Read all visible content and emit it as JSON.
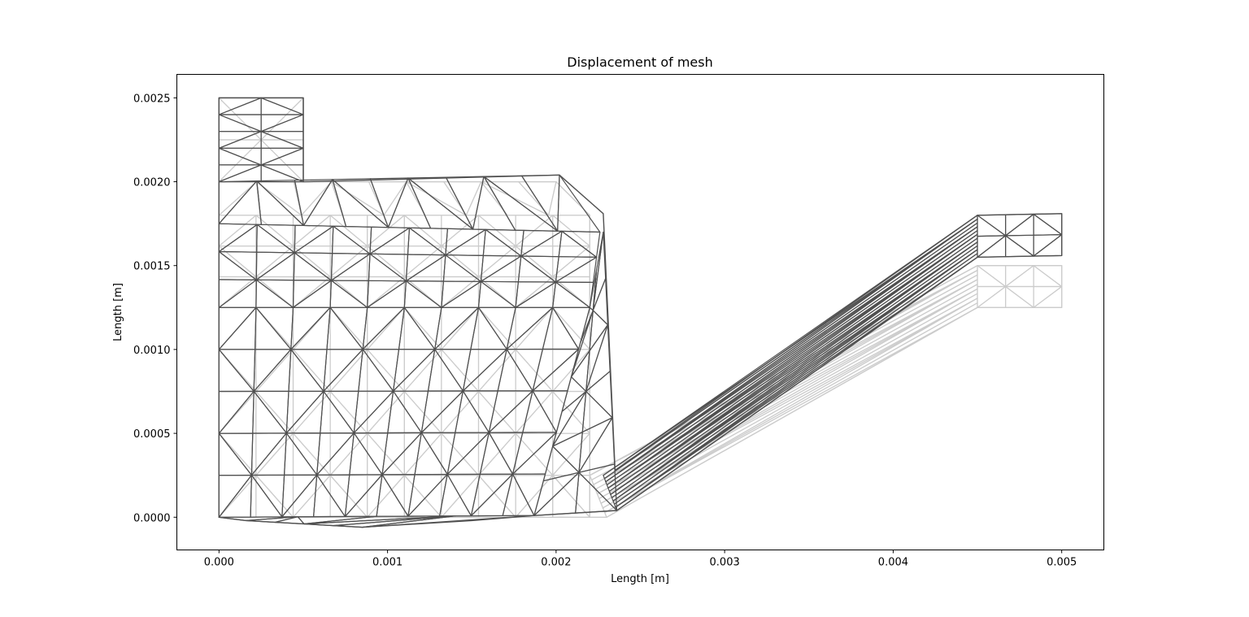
{
  "chart_data": {
    "type": "mesh",
    "title": "Displacement of mesh",
    "xlabel": "Length [m]",
    "ylabel": "Length [m]",
    "xlim": [
      -0.00025,
      0.00525
    ],
    "ylim": [
      -0.000195,
      0.00264
    ],
    "xticks": [
      0.0,
      0.001,
      0.002,
      0.003,
      0.004,
      0.005
    ],
    "xtick_labels": [
      "0.000",
      "0.001",
      "0.002",
      "0.003",
      "0.004",
      "0.005"
    ],
    "yticks": [
      0.0,
      0.0005,
      0.001,
      0.0015,
      0.002,
      0.0025
    ],
    "ytick_labels": [
      "0.0000",
      "0.0005",
      "0.0010",
      "0.0015",
      "0.0020",
      "0.0025"
    ],
    "grid": false,
    "colors": {
      "original": "#cccccc",
      "displaced": "#505050"
    },
    "series": [
      {
        "role": "original",
        "outline": [
          [
            0,
            0
          ],
          [
            0.0023,
            0
          ],
          [
            0.0045,
            0.00125
          ],
          [
            0.005,
            0.00125
          ],
          [
            0.005,
            0.0015
          ],
          [
            0.0045,
            0.0015
          ],
          [
            0.0022,
            0.00025
          ],
          [
            0.0022,
            0.0018
          ],
          [
            0.002,
            0.002
          ],
          [
            0.0005,
            0.002
          ],
          [
            0.0005,
            0.0025
          ],
          [
            0,
            0.0025
          ]
        ]
      },
      {
        "role": "displaced",
        "outline": [
          [
            0,
            0
          ],
          [
            0.00016,
            -2e-05
          ],
          [
            0.00085,
            -6e-05
          ],
          [
            0.0015,
            -2e-05
          ],
          [
            0.00187,
            1e-05
          ],
          [
            0.00236,
            4e-05
          ],
          [
            0.0045,
            0.00155
          ],
          [
            0.005,
            0.00156
          ],
          [
            0.005,
            0.00181
          ],
          [
            0.0045,
            0.0018
          ],
          [
            0.00235,
            0.00028
          ],
          [
            0.00228,
            0.00181
          ],
          [
            0.00202,
            0.00204
          ],
          [
            0.0005,
            0.002
          ],
          [
            0.0005,
            0.0025
          ],
          [
            0,
            0.0025
          ]
        ]
      }
    ]
  }
}
